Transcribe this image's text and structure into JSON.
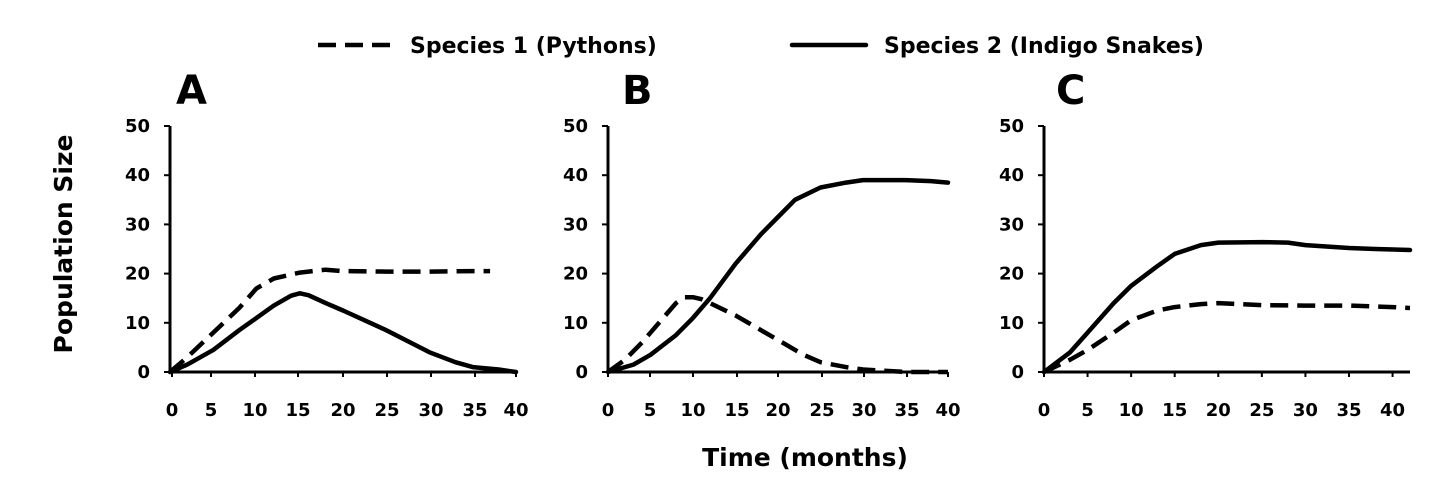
{
  "legend": {
    "species1_label": "Species 1 (Pythons)",
    "species2_label": "Species 2 (Indigo Snakes)"
  },
  "xlabel": "Time (months)",
  "ylabel": "Population Size",
  "chart_data": [
    {
      "type": "line",
      "panel": "A",
      "xlim": [
        0,
        40
      ],
      "ylim": [
        0,
        50
      ],
      "xticks": [
        0,
        5,
        10,
        15,
        20,
        25,
        30,
        35,
        40
      ],
      "yticks": [
        0,
        10,
        20,
        30,
        40,
        50
      ],
      "series": [
        {
          "name": "Species 1 (Pythons)",
          "style": "dashed",
          "x": [
            0,
            2,
            5,
            8,
            10,
            12,
            15,
            18,
            20,
            25,
            30,
            35,
            37
          ],
          "y": [
            0,
            3,
            8,
            13,
            17,
            19,
            20.2,
            20.8,
            20.5,
            20.4,
            20.4,
            20.5,
            20.5
          ]
        },
        {
          "name": "Species 2 (Indigo Snakes)",
          "style": "solid",
          "x": [
            0,
            2,
            5,
            8,
            10,
            12,
            14,
            15,
            16,
            18,
            20,
            25,
            30,
            33,
            35,
            38,
            40
          ],
          "y": [
            0,
            1.5,
            4.5,
            8.5,
            11,
            13.5,
            15.5,
            16,
            15.6,
            14,
            12.5,
            8.5,
            4,
            2,
            1,
            0.5,
            0
          ]
        }
      ]
    },
    {
      "type": "line",
      "panel": "B",
      "xlim": [
        0,
        40
      ],
      "ylim": [
        0,
        50
      ],
      "xticks": [
        0,
        5,
        10,
        15,
        20,
        25,
        30,
        35,
        40
      ],
      "yticks": [
        0,
        10,
        20,
        30,
        40,
        50
      ],
      "series": [
        {
          "name": "Species 1 (Pythons)",
          "style": "dashed",
          "x": [
            0,
            2,
            4,
            6,
            8,
            9,
            10,
            11,
            12,
            15,
            18,
            20,
            23,
            25,
            28,
            30,
            33,
            35,
            38,
            40
          ],
          "y": [
            0,
            2.5,
            6,
            10,
            14,
            15.2,
            15.2,
            14.8,
            14,
            11.5,
            8.5,
            6.5,
            3.5,
            2,
            1,
            0.5,
            0.2,
            0,
            0,
            0
          ]
        },
        {
          "name": "Species 2 (Indigo Snakes)",
          "style": "solid",
          "x": [
            0,
            3,
            5,
            8,
            10,
            12,
            15,
            18,
            20,
            22,
            25,
            28,
            30,
            35,
            38,
            40
          ],
          "y": [
            0,
            1.5,
            3.5,
            7.5,
            11,
            15,
            22,
            28,
            31.5,
            35,
            37.5,
            38.5,
            39,
            39,
            38.8,
            38.5
          ]
        }
      ]
    },
    {
      "type": "line",
      "panel": "C",
      "xlim": [
        0,
        42
      ],
      "ylim": [
        0,
        50
      ],
      "xticks": [
        0,
        5,
        10,
        15,
        20,
        25,
        30,
        35,
        40
      ],
      "yticks": [
        0,
        10,
        20,
        30,
        40,
        50
      ],
      "series": [
        {
          "name": "Species 1 (Pythons)",
          "style": "dashed",
          "x": [
            0,
            3,
            5,
            8,
            10,
            13,
            15,
            18,
            20,
            25,
            30,
            35,
            40,
            42
          ],
          "y": [
            0,
            2.5,
            4.5,
            8,
            10.5,
            12.5,
            13.2,
            13.8,
            14,
            13.6,
            13.5,
            13.5,
            13.2,
            13
          ]
        },
        {
          "name": "Species 2 (Indigo Snakes)",
          "style": "solid",
          "x": [
            0,
            3,
            5,
            8,
            10,
            13,
            15,
            18,
            20,
            25,
            28,
            30,
            35,
            38,
            42
          ],
          "y": [
            0,
            4,
            8,
            14,
            17.5,
            21.5,
            24,
            25.8,
            26.3,
            26.4,
            26.3,
            25.8,
            25.2,
            25,
            24.8
          ]
        }
      ]
    }
  ]
}
